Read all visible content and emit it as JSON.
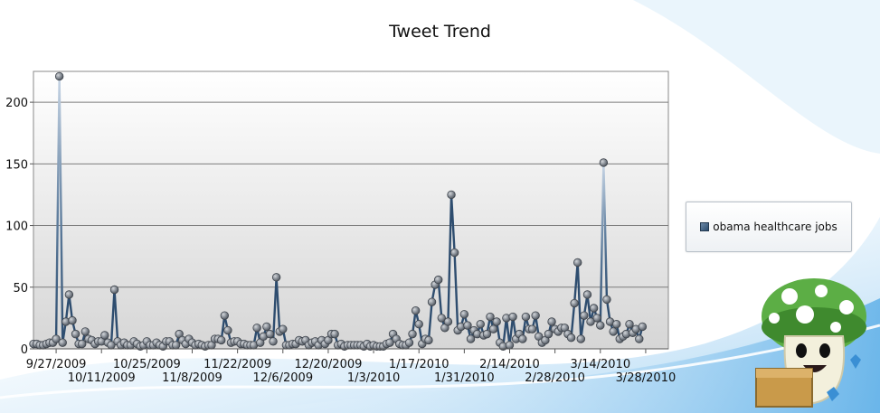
{
  "chart_data": {
    "type": "line",
    "title": "Tweet Trend",
    "xlabel": "",
    "ylabel": "",
    "x_start": "9/20/2009",
    "x_end": "4/4/2010",
    "ylim": [
      0,
      225
    ],
    "yticks": [
      0,
      50,
      100,
      150,
      200
    ],
    "x_ticks": [
      "9/27/2009",
      "10/11/2009",
      "10/25/2009",
      "11/8/2009",
      "11/22/2009",
      "12/6/2009",
      "12/20/2009",
      "1/3/2010",
      "1/17/2010",
      "1/31/2010",
      "2/14/2010",
      "2/28/2010",
      "3/14/2010",
      "3/28/2010"
    ],
    "grid": true,
    "legend_position": "right",
    "series": [
      {
        "name": "obama healthcare jobs",
        "color": "#2e4d6f",
        "points": [
          [
            "9/20/2009",
            4
          ],
          [
            "9/21/2009",
            4
          ],
          [
            "9/22/2009",
            3
          ],
          [
            "9/23/2009",
            3
          ],
          [
            "9/24/2009",
            4
          ],
          [
            "9/25/2009",
            5
          ],
          [
            "9/26/2009",
            5
          ],
          [
            "9/27/2009",
            8
          ],
          [
            "9/28/2009",
            221
          ],
          [
            "9/29/2009",
            5
          ],
          [
            "9/30/2009",
            22
          ],
          [
            "10/1/2009",
            44
          ],
          [
            "10/2/2009",
            23
          ],
          [
            "10/3/2009",
            12
          ],
          [
            "10/4/2009",
            4
          ],
          [
            "10/5/2009",
            4
          ],
          [
            "10/6/2009",
            14
          ],
          [
            "10/7/2009",
            8
          ],
          [
            "10/8/2009",
            7
          ],
          [
            "10/9/2009",
            4
          ],
          [
            "10/10/2009",
            6
          ],
          [
            "10/11/2009",
            6
          ],
          [
            "10/12/2009",
            11
          ],
          [
            "10/13/2009",
            5
          ],
          [
            "10/14/2009",
            3
          ],
          [
            "10/15/2009",
            48
          ],
          [
            "10/16/2009",
            6
          ],
          [
            "10/17/2009",
            3
          ],
          [
            "10/18/2009",
            5
          ],
          [
            "10/19/2009",
            3
          ],
          [
            "10/20/2009",
            3
          ],
          [
            "10/21/2009",
            6
          ],
          [
            "10/22/2009",
            4
          ],
          [
            "10/23/2009",
            2
          ],
          [
            "10/24/2009",
            3
          ],
          [
            "10/25/2009",
            6
          ],
          [
            "10/26/2009",
            3
          ],
          [
            "10/27/2009",
            3
          ],
          [
            "10/28/2009",
            5
          ],
          [
            "10/29/2009",
            3
          ],
          [
            "10/30/2009",
            2
          ],
          [
            "10/31/2009",
            6
          ],
          [
            "11/1/2009",
            6
          ],
          [
            "11/2/2009",
            3
          ],
          [
            "11/3/2009",
            3
          ],
          [
            "11/4/2009",
            12
          ],
          [
            "11/5/2009",
            7
          ],
          [
            "11/6/2009",
            4
          ],
          [
            "11/7/2009",
            8
          ],
          [
            "11/8/2009",
            5
          ],
          [
            "11/9/2009",
            3
          ],
          [
            "11/10/2009",
            4
          ],
          [
            "11/11/2009",
            3
          ],
          [
            "11/12/2009",
            2
          ],
          [
            "11/13/2009",
            3
          ],
          [
            "11/14/2009",
            3
          ],
          [
            "11/15/2009",
            8
          ],
          [
            "11/16/2009",
            8
          ],
          [
            "11/17/2009",
            7
          ],
          [
            "11/18/2009",
            27
          ],
          [
            "11/19/2009",
            15
          ],
          [
            "11/20/2009",
            5
          ],
          [
            "11/21/2009",
            6
          ],
          [
            "11/22/2009",
            6
          ],
          [
            "11/23/2009",
            4
          ],
          [
            "11/24/2009",
            4
          ],
          [
            "11/25/2009",
            3
          ],
          [
            "11/26/2009",
            3
          ],
          [
            "11/27/2009",
            3
          ],
          [
            "11/28/2009",
            17
          ],
          [
            "11/29/2009",
            5
          ],
          [
            "11/30/2009",
            10
          ],
          [
            "12/1/2009",
            18
          ],
          [
            "12/2/2009",
            12
          ],
          [
            "12/3/2009",
            6
          ],
          [
            "12/4/2009",
            58
          ],
          [
            "12/5/2009",
            14
          ],
          [
            "12/6/2009",
            16
          ],
          [
            "12/7/2009",
            3
          ],
          [
            "12/8/2009",
            3
          ],
          [
            "12/9/2009",
            4
          ],
          [
            "12/10/2009",
            4
          ],
          [
            "12/11/2009",
            7
          ],
          [
            "12/12/2009",
            6
          ],
          [
            "12/13/2009",
            7
          ],
          [
            "12/14/2009",
            3
          ],
          [
            "12/15/2009",
            5
          ],
          [
            "12/16/2009",
            6
          ],
          [
            "12/17/2009",
            3
          ],
          [
            "12/18/2009",
            7
          ],
          [
            "12/19/2009",
            4
          ],
          [
            "12/20/2009",
            7
          ],
          [
            "12/21/2009",
            12
          ],
          [
            "12/22/2009",
            12
          ],
          [
            "12/23/2009",
            3
          ],
          [
            "12/24/2009",
            4
          ],
          [
            "12/25/2009",
            2
          ],
          [
            "12/26/2009",
            3
          ],
          [
            "12/27/2009",
            3
          ],
          [
            "12/28/2009",
            3
          ],
          [
            "12/29/2009",
            3
          ],
          [
            "12/30/2009",
            3
          ],
          [
            "12/31/2009",
            2
          ],
          [
            "1/1/2010",
            4
          ],
          [
            "1/2/2010",
            2
          ],
          [
            "1/3/2010",
            3
          ],
          [
            "1/4/2010",
            2
          ],
          [
            "1/5/2010",
            2
          ],
          [
            "1/6/2010",
            2
          ],
          [
            "1/7/2010",
            4
          ],
          [
            "1/8/2010",
            5
          ],
          [
            "1/9/2010",
            12
          ],
          [
            "1/10/2010",
            8
          ],
          [
            "1/11/2010",
            4
          ],
          [
            "1/12/2010",
            3
          ],
          [
            "1/13/2010",
            3
          ],
          [
            "1/14/2010",
            5
          ],
          [
            "1/15/2010",
            12
          ],
          [
            "1/16/2010",
            31
          ],
          [
            "1/17/2010",
            20
          ],
          [
            "1/18/2010",
            4
          ],
          [
            "1/19/2010",
            8
          ],
          [
            "1/20/2010",
            7
          ],
          [
            "1/21/2010",
            38
          ],
          [
            "1/22/2010",
            52
          ],
          [
            "1/23/2010",
            56
          ],
          [
            "1/24/2010",
            25
          ],
          [
            "1/25/2010",
            17
          ],
          [
            "1/26/2010",
            22
          ],
          [
            "1/27/2010",
            125
          ],
          [
            "1/28/2010",
            78
          ],
          [
            "1/29/2010",
            15
          ],
          [
            "1/30/2010",
            18
          ],
          [
            "1/31/2010",
            28
          ],
          [
            "2/1/2010",
            19
          ],
          [
            "2/2/2010",
            8
          ],
          [
            "2/3/2010",
            15
          ],
          [
            "2/4/2010",
            12
          ],
          [
            "2/5/2010",
            20
          ],
          [
            "2/6/2010",
            11
          ],
          [
            "2/7/2010",
            12
          ],
          [
            "2/8/2010",
            26
          ],
          [
            "2/9/2010",
            16
          ],
          [
            "2/10/2010",
            22
          ],
          [
            "2/11/2010",
            5
          ],
          [
            "2/12/2010",
            2
          ],
          [
            "2/13/2010",
            25
          ],
          [
            "2/14/2010",
            3
          ],
          [
            "2/15/2010",
            26
          ],
          [
            "2/16/2010",
            8
          ],
          [
            "2/17/2010",
            12
          ],
          [
            "2/18/2010",
            8
          ],
          [
            "2/19/2010",
            26
          ],
          [
            "2/20/2010",
            16
          ],
          [
            "2/21/2010",
            16
          ],
          [
            "2/22/2010",
            27
          ],
          [
            "2/23/2010",
            10
          ],
          [
            "2/24/2010",
            5
          ],
          [
            "2/25/2010",
            7
          ],
          [
            "2/26/2010",
            12
          ],
          [
            "2/27/2010",
            22
          ],
          [
            "2/28/2010",
            16
          ],
          [
            "3/1/2010",
            14
          ],
          [
            "3/2/2010",
            17
          ],
          [
            "3/3/2010",
            17
          ],
          [
            "3/4/2010",
            12
          ],
          [
            "3/5/2010",
            9
          ],
          [
            "3/6/2010",
            37
          ],
          [
            "3/7/2010",
            70
          ],
          [
            "3/8/2010",
            8
          ],
          [
            "3/9/2010",
            27
          ],
          [
            "3/10/2010",
            44
          ],
          [
            "3/11/2010",
            22
          ],
          [
            "3/12/2010",
            33
          ],
          [
            "3/13/2010",
            25
          ],
          [
            "3/14/2010",
            19
          ],
          [
            "3/15/2010",
            151
          ],
          [
            "3/16/2010",
            40
          ],
          [
            "3/17/2010",
            22
          ],
          [
            "3/18/2010",
            14
          ],
          [
            "3/19/2010",
            20
          ],
          [
            "3/20/2010",
            8
          ],
          [
            "3/21/2010",
            10
          ],
          [
            "3/22/2010",
            12
          ],
          [
            "3/23/2010",
            20
          ],
          [
            "3/24/2010",
            13
          ],
          [
            "3/25/2010",
            16
          ],
          [
            "3/26/2010",
            8
          ],
          [
            "3/27/2010",
            18
          ]
        ]
      }
    ]
  }
}
